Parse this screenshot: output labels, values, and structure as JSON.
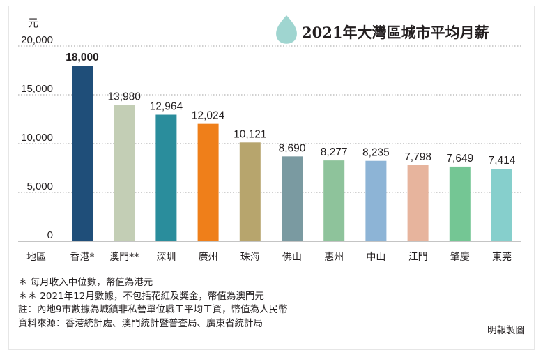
{
  "title": "2021年大灣區城市平均月薪",
  "colors": {
    "gridline": "#a0a0a0",
    "baseline": "#8a8a8a",
    "drop_icon": "#9fd5d0"
  },
  "chart_data": {
    "type": "bar",
    "title": "2021年大灣區城市平均月薪",
    "unit_label": "元",
    "x_axis_label": "地區",
    "ylim": [
      0,
      20000
    ],
    "yticks": [
      0,
      5000,
      10000,
      15000,
      20000
    ],
    "ytick_labels": [
      "0",
      "5,000",
      "10,000",
      "15,000",
      "20,000"
    ],
    "grid": true,
    "categories": [
      "香港*",
      "澳門**",
      "深圳",
      "廣州",
      "珠海",
      "佛山",
      "惠州",
      "中山",
      "江門",
      "肇慶",
      "東莞"
    ],
    "values": [
      18000,
      13980,
      12964,
      12024,
      10121,
      8690,
      8277,
      8235,
      7798,
      7649,
      7414
    ],
    "value_labels": [
      "18,000",
      "13,980",
      "12,964",
      "12,024",
      "10,121",
      "8,690",
      "8,277",
      "8,235",
      "7,798",
      "7,649",
      "7,414"
    ],
    "bar_colors": [
      "#1f4e79",
      "#c3ceb5",
      "#2a8d9c",
      "#ef7f1a",
      "#b7a56d",
      "#7a9aa1",
      "#8ec39b",
      "#8db4d6",
      "#e7b49d",
      "#74c694",
      "#86cfcc"
    ],
    "highlight_first_label": true
  },
  "notes": [
    "＊ 每月收入中位數，幣值為港元",
    "＊＊ 2021年12月數據，不包括花紅及獎金，幣值為澳門元",
    "註：內地9市數據為城鎮非私營單位職工平均工資，幣值為人民幣",
    "資料來源：香港統計處、澳門統計暨普查局、廣東省統計局"
  ],
  "credit": "明報製圖"
}
